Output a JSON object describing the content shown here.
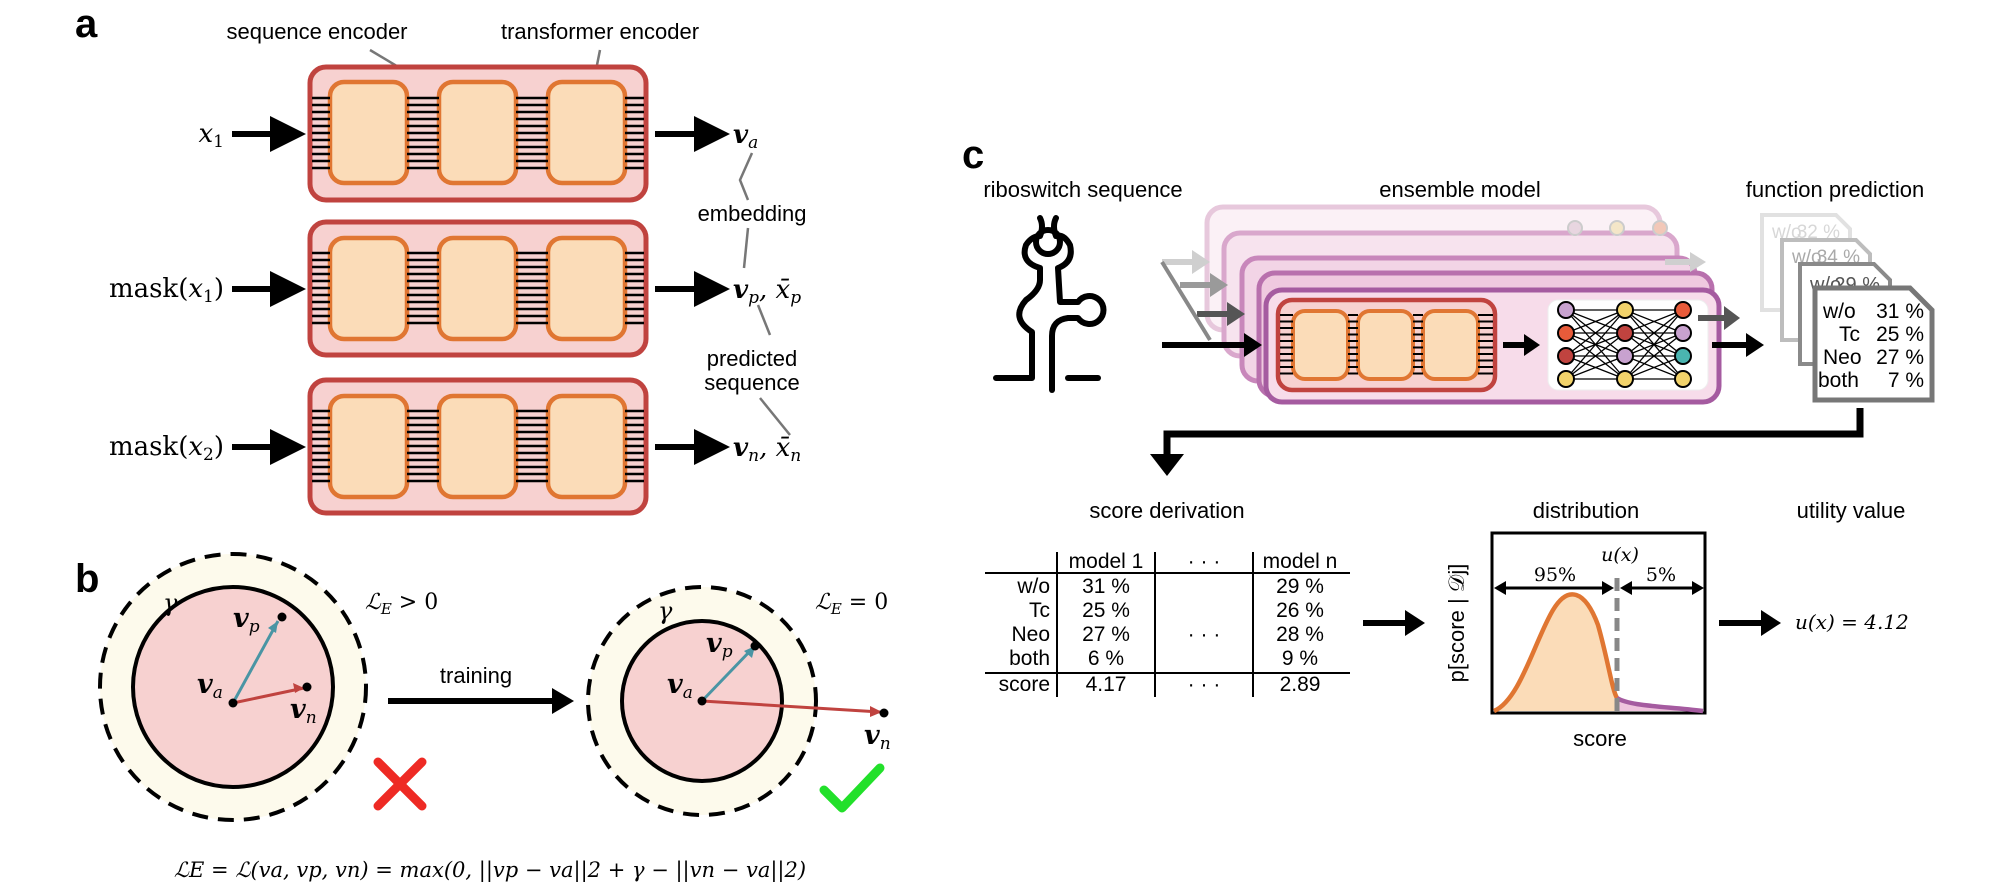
{
  "panels": {
    "a": {
      "letter": "a",
      "labels": {
        "sequence_encoder": "sequence encoder",
        "transformer_encoder": "transformer encoder",
        "embedding": "embedding",
        "predicted": "predicted",
        "sequence": "sequence"
      },
      "inputs": [
        {
          "main": "x",
          "sub": "1",
          "prefix": ""
        },
        {
          "main": "x",
          "sub": "1",
          "prefix": "mask("
        },
        {
          "main": "x",
          "sub": "2",
          "prefix": "mask("
        }
      ],
      "outputs": [
        {
          "v": "v",
          "sub": "a",
          "extra": ""
        },
        {
          "v": "v",
          "sub": "p",
          "extra": ", x̄",
          "extra_sub": "p"
        },
        {
          "v": "v",
          "sub": "n",
          "extra": ", x̄",
          "extra_sub": "n"
        }
      ]
    },
    "b": {
      "letter": "b",
      "gamma": "γ",
      "loss_left": "ℒ",
      "loss_left_sub": "E",
      "loss_left_rel": " > 0",
      "loss_right_rel": " = 0",
      "training": "training",
      "va": "v",
      "va_sub": "a",
      "vp": "v",
      "vp_sub": "p",
      "vn": "v",
      "vn_sub": "n",
      "formula": "ℒE = ℒ(va, vp, vn) = max(0, ||vp − va||2 + γ − ||vn − va||2)"
    },
    "c": {
      "letter": "c",
      "labels": {
        "riboswitch": "riboswitch sequence",
        "ensemble": "ensemble model",
        "function_prediction": "function prediction",
        "score_derivation": "score derivation",
        "distribution": "distribution",
        "utility_value": "utility value",
        "score_axis": "score",
        "y_axis": "p[score | 𝒟j]",
        "pct95": "95%",
        "pct5": "5%",
        "ux": "u(x)",
        "utility": "u(x) = 4.12"
      },
      "prediction_cards": [
        {
          "rows": [
            [
              "w/o",
              "32 %"
            ]
          ]
        },
        {
          "rows": [
            [
              "w/o",
              "34 %"
            ]
          ]
        },
        {
          "rows": [
            [
              "w/o",
              "29 %"
            ]
          ]
        },
        {
          "rows": [
            [
              "w/o",
              "31 %"
            ],
            [
              "Tc",
              "25 %"
            ],
            [
              "Neo",
              "27 %"
            ],
            [
              "both",
              "7 %"
            ]
          ]
        }
      ],
      "table": {
        "headers": [
          "",
          "model 1",
          "· · ·",
          "model n"
        ],
        "rows": [
          [
            "w/o",
            "31 %",
            "",
            "29 %"
          ],
          [
            "Tc",
            "25 %",
            "",
            "26 %"
          ],
          [
            "Neo",
            "27 %",
            "· · ·",
            "28 %"
          ],
          [
            "both",
            "6 %",
            "",
            "9 %"
          ],
          [
            "score",
            "4.17",
            "· · ·",
            "2.89"
          ]
        ]
      }
    }
  }
}
